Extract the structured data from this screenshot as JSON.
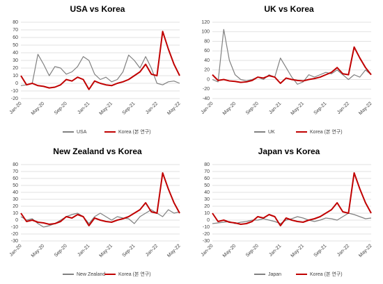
{
  "chart_data": [
    {
      "type": "line",
      "title": "USA vs Korea",
      "categories": [
        "Jan-20",
        null,
        null,
        null,
        "May-20",
        null,
        null,
        null,
        "Sep-20",
        null,
        null,
        null,
        "Jan-21",
        null,
        null,
        null,
        "May-21",
        null,
        null,
        null,
        "Sep-21",
        null,
        null,
        null,
        "Jan-22",
        null,
        null,
        null,
        "May-22"
      ],
      "series": [
        {
          "name": "USA",
          "color": "#808080",
          "values": [
            -3,
            -2,
            0,
            38,
            25,
            10,
            22,
            20,
            12,
            15,
            22,
            35,
            30,
            12,
            5,
            8,
            2,
            5,
            15,
            37,
            30,
            20,
            35,
            20,
            0,
            -2,
            2,
            3,
            0
          ]
        },
        {
          "name": "Korea (본 연구)",
          "color": "#c00000",
          "values": [
            10,
            -2,
            0,
            -3,
            -4,
            -6,
            -5,
            -2,
            5,
            3,
            8,
            5,
            -8,
            3,
            0,
            -2,
            -3,
            0,
            2,
            5,
            10,
            15,
            25,
            12,
            10,
            68,
            45,
            25,
            10
          ]
        }
      ],
      "ylim": [
        -20,
        80
      ],
      "yticks": [
        -20,
        -10,
        0,
        10,
        20,
        30,
        40,
        50,
        60,
        70,
        80
      ],
      "grid": true
    },
    {
      "type": "line",
      "title": "UK vs Korea",
      "categories": [
        "Jan-20",
        null,
        null,
        null,
        "May-20",
        null,
        null,
        null,
        "Sep-20",
        null,
        null,
        null,
        "Jan-21",
        null,
        null,
        null,
        "May-21",
        null,
        null,
        null,
        "Sep-21",
        null,
        null,
        null,
        "Jan-22",
        null,
        null,
        null,
        "May-22"
      ],
      "series": [
        {
          "name": "UK",
          "color": "#808080",
          "values": [
            0,
            -5,
            105,
            40,
            10,
            0,
            -3,
            0,
            5,
            0,
            10,
            5,
            45,
            25,
            5,
            -10,
            -5,
            10,
            5,
            10,
            15,
            12,
            20,
            10,
            0,
            10,
            5,
            20,
            10
          ]
        },
        {
          "name": "Korea (본 연구)",
          "color": "#c00000",
          "values": [
            10,
            -2,
            0,
            -3,
            -4,
            -6,
            -5,
            -2,
            5,
            3,
            8,
            5,
            -8,
            3,
            0,
            -2,
            -3,
            0,
            2,
            5,
            10,
            15,
            25,
            12,
            10,
            68,
            45,
            25,
            10
          ]
        }
      ],
      "ylim": [
        -40,
        120
      ],
      "yticks": [
        -40,
        -20,
        0,
        20,
        40,
        60,
        80,
        100,
        120
      ],
      "grid": true
    },
    {
      "type": "line",
      "title": "New Zealand vs Korea",
      "categories": [
        "Jan-20",
        null,
        null,
        null,
        "May-20",
        null,
        null,
        null,
        "Sep-20",
        null,
        null,
        null,
        "Jan-21",
        null,
        null,
        null,
        "May-21",
        null,
        null,
        null,
        "Sep-21",
        null,
        null,
        null,
        "Jan-22",
        null,
        null,
        null,
        "May-22"
      ],
      "series": [
        {
          "name": "New Zealand",
          "color": "#808080",
          "values": [
            5,
            0,
            2,
            -5,
            -10,
            -8,
            -5,
            0,
            5,
            8,
            10,
            5,
            -5,
            5,
            10,
            5,
            0,
            5,
            3,
            2,
            -5,
            5,
            10,
            15,
            10,
            5,
            15,
            10,
            12
          ]
        },
        {
          "name": "Korea (본 연구)",
          "color": "#c00000",
          "values": [
            10,
            -2,
            0,
            -3,
            -4,
            -6,
            -5,
            -2,
            5,
            3,
            8,
            5,
            -8,
            3,
            0,
            -2,
            -3,
            0,
            2,
            5,
            10,
            15,
            25,
            12,
            10,
            68,
            45,
            25,
            10
          ]
        }
      ],
      "ylim": [
        -30,
        80
      ],
      "yticks": [
        -30,
        -20,
        -10,
        0,
        10,
        20,
        30,
        40,
        50,
        60,
        70,
        80
      ],
      "grid": true
    },
    {
      "type": "line",
      "title": "Japan vs Korea",
      "categories": [
        "Jan-20",
        null,
        null,
        null,
        "May-20",
        null,
        null,
        null,
        "Sep-20",
        null,
        null,
        null,
        "Jan-21",
        null,
        null,
        null,
        "May-21",
        null,
        null,
        null,
        "Sep-21",
        null,
        null,
        null,
        "Jan-22",
        null,
        null,
        null,
        "May-22"
      ],
      "series": [
        {
          "name": "Japan",
          "color": "#808080",
          "values": [
            -5,
            -4,
            -3,
            -2,
            -5,
            -3,
            -2,
            0,
            0,
            2,
            0,
            -2,
            -5,
            0,
            2,
            5,
            3,
            0,
            -2,
            0,
            3,
            2,
            0,
            5,
            10,
            8,
            5,
            2,
            3
          ]
        },
        {
          "name": "Korea (본 연구)",
          "color": "#c00000",
          "values": [
            10,
            -2,
            0,
            -3,
            -4,
            -6,
            -5,
            -2,
            5,
            3,
            8,
            5,
            -8,
            3,
            0,
            -2,
            -3,
            0,
            2,
            5,
            10,
            15,
            25,
            12,
            10,
            68,
            45,
            25,
            10
          ]
        }
      ],
      "ylim": [
        -30,
        80
      ],
      "yticks": [
        -30,
        -20,
        -10,
        0,
        10,
        20,
        30,
        40,
        50,
        60,
        70,
        80
      ],
      "grid": true
    }
  ]
}
